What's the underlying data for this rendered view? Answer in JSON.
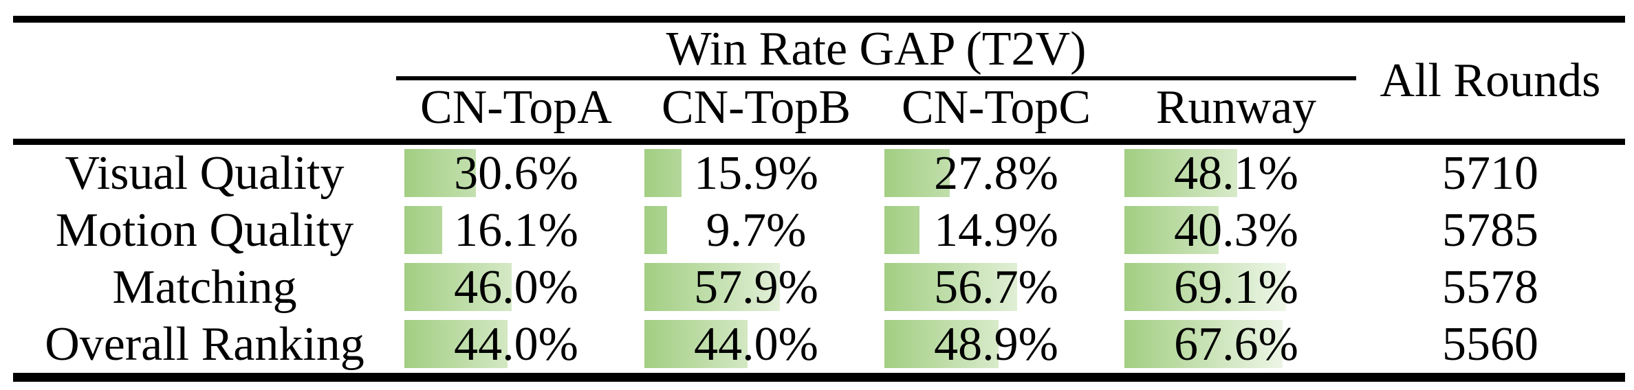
{
  "table": {
    "group_header": "Win Rate GAP (T2V)",
    "all_rounds_header": "All Rounds",
    "columns": [
      "CN-TopA",
      "CN-TopB",
      "CN-TopC",
      "Runway"
    ],
    "rows": [
      {
        "label": "Visual Quality",
        "values": [
          30.6,
          15.9,
          27.8,
          48.1
        ],
        "display": [
          "30.6%",
          "15.9%",
          "27.8%",
          "48.1%"
        ],
        "all_rounds": "5710"
      },
      {
        "label": "Motion Quality",
        "values": [
          16.1,
          9.7,
          14.9,
          40.3
        ],
        "display": [
          "16.1%",
          "9.7%",
          "14.9%",
          "40.3%"
        ],
        "all_rounds": "5785"
      },
      {
        "label": "Matching",
        "values": [
          46.0,
          57.9,
          56.7,
          69.1
        ],
        "display": [
          "46.0%",
          "57.9%",
          "56.7%",
          "69.1%"
        ],
        "all_rounds": "5578"
      },
      {
        "label": "Overall Ranking",
        "values": [
          44.0,
          44.0,
          48.9,
          67.6
        ],
        "display": [
          "44.0%",
          "44.0%",
          "48.9%",
          "67.6%"
        ],
        "all_rounds": "5560"
      }
    ],
    "bar_style": {
      "color_left": "#a2ce82",
      "color_right": "#ffffff",
      "full_scale_percent": 100
    }
  },
  "chart_data": {
    "type": "table",
    "title": "Win Rate GAP (T2V)",
    "categories": [
      "CN-TopA",
      "CN-TopB",
      "CN-TopC",
      "Runway"
    ],
    "series": [
      {
        "name": "Visual Quality",
        "values": [
          30.6,
          15.9,
          27.8,
          48.1
        ],
        "all_rounds": 5710
      },
      {
        "name": "Motion Quality",
        "values": [
          16.1,
          9.7,
          14.9,
          40.3
        ],
        "all_rounds": 5785
      },
      {
        "name": "Matching",
        "values": [
          46.0,
          57.9,
          56.7,
          69.1
        ],
        "all_rounds": 5578
      },
      {
        "name": "Overall Ranking",
        "values": [
          44.0,
          44.0,
          48.9,
          67.6
        ],
        "all_rounds": 5560
      }
    ],
    "value_unit": "%",
    "extra_column": "All Rounds",
    "bar_scale": [
      0,
      100
    ]
  }
}
